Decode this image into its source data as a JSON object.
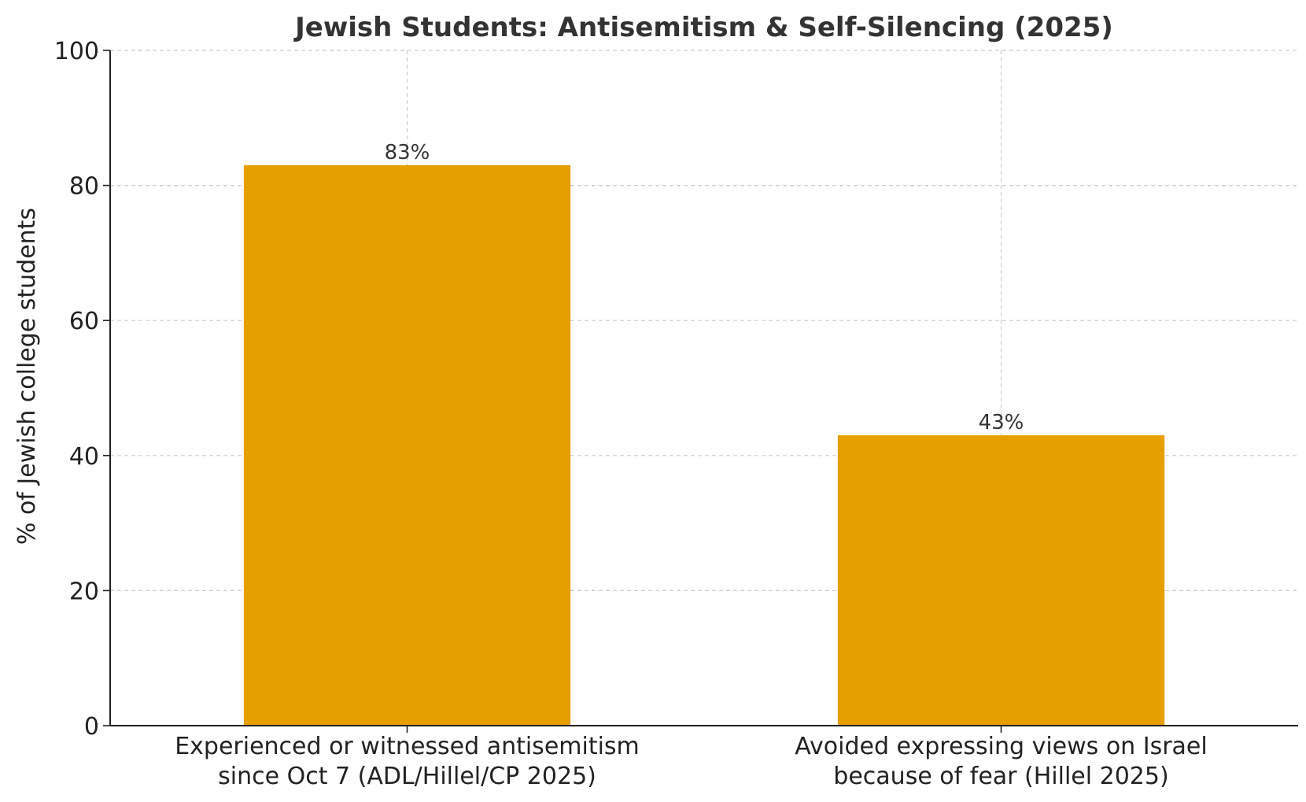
{
  "chart_data": {
    "type": "bar",
    "title": "Jewish Students: Antisemitism & Self-Silencing (2025)",
    "xlabel": "",
    "ylabel": "% of Jewish college students",
    "categories": [
      [
        "Experienced or witnessed antisemitism",
        "since Oct 7 (ADL/Hillel/CP 2025)"
      ],
      [
        "Avoided expressing views on Israel",
        "because of fear (Hillel 2025)"
      ]
    ],
    "values": [
      83,
      43
    ],
    "data_labels": [
      "83%",
      "43%"
    ],
    "ylim": [
      0,
      100
    ],
    "yticks": [
      0,
      20,
      40,
      60,
      80,
      100
    ],
    "grid": true,
    "bar_color": "#E69F00",
    "text_color": "#333333",
    "grid_color": "#cccccc"
  }
}
